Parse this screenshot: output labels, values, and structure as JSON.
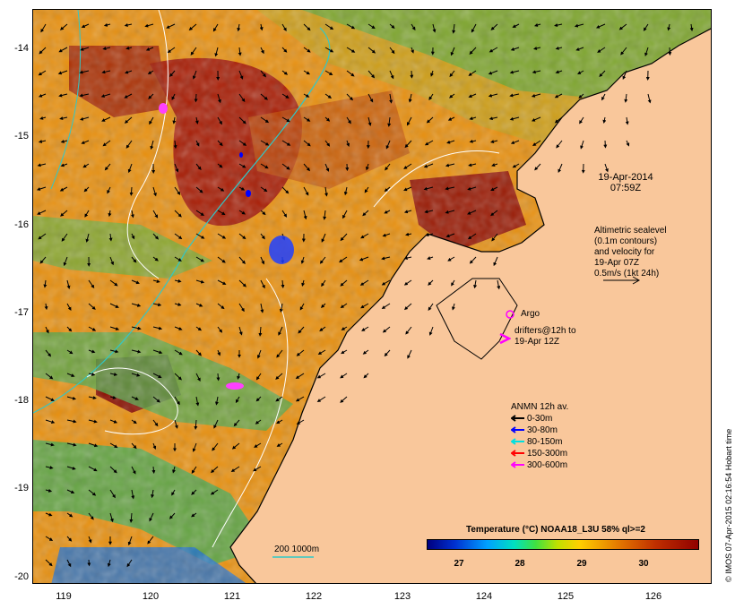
{
  "axes": {
    "y_labels": [
      "-14",
      "-15",
      "-16",
      "-17",
      "-18",
      "-19",
      "-20"
    ],
    "x_labels": [
      "119",
      "120",
      "121",
      "122",
      "123",
      "124",
      "125",
      "126"
    ]
  },
  "timestamp": {
    "date": "19-Apr-2014",
    "time": "07:59Z"
  },
  "altimetry": {
    "line1": "Altimetric sealevel",
    "line2": "(0.1m contours)",
    "line3": "and velocity for",
    "line4": "19-Apr 07Z",
    "line5": "0.5m/s (1kt 24h)"
  },
  "argo": {
    "label": "Argo"
  },
  "drifters": {
    "line1": "drifters@12h to",
    "line2": "19-Apr 12Z"
  },
  "legend": {
    "title": "ANMN 12h av.",
    "items": [
      {
        "label": "0-30m",
        "color": "#000000"
      },
      {
        "label": "30-80m",
        "color": "#0000ff"
      },
      {
        "label": "80-150m",
        "color": "#00e0e0"
      },
      {
        "label": "150-300m",
        "color": "#ff0000"
      },
      {
        "label": "300-600m",
        "color": "#ff00ff"
      }
    ]
  },
  "colorbar": {
    "title": "Temperature (°C) NOAA18_L3U 58% ql>=2",
    "labels": [
      "27",
      "28",
      "29",
      "30"
    ]
  },
  "scale": {
    "label": "200  1000m"
  },
  "credit": "© IMOS 07-Apr-2015 02:16:54 Hobart time"
}
